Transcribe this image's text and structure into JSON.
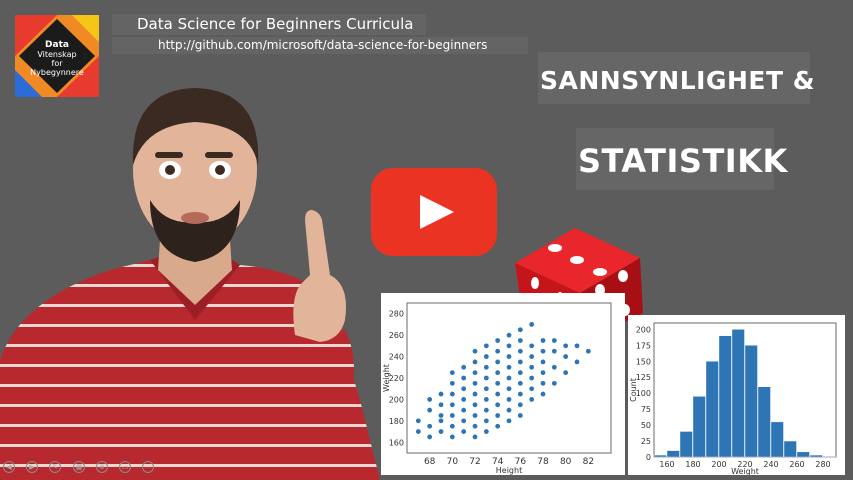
{
  "header": {
    "title": "Data Science for Beginners Curricula",
    "url": "http://github.com/microsoft/data-science-for-beginners"
  },
  "logo": {
    "line1": "Data",
    "line2": "Vitenskap",
    "line3": "for",
    "line4": "Nybegynnere"
  },
  "heading": {
    "line1": "SANNSYNLIGHET &",
    "line2": "STATISTIKK"
  },
  "colors": {
    "background": "#5c5c5c",
    "youtube_red": "#ea3323",
    "shirt_red": "#b8292f",
    "bar_blue": "#2e75b6",
    "dice_red": "#d7191c"
  },
  "icons": {
    "play": "youtube-play-icon",
    "dice": "dice-icon"
  },
  "chart_data": [
    {
      "type": "scatter",
      "ylabel": "Weight",
      "xlabel": "Height",
      "x_ticks": [
        "68",
        "70",
        "72",
        "74",
        "76",
        "78",
        "80",
        "82"
      ],
      "y_ticks": [
        "160",
        "180",
        "200",
        "220",
        "240",
        "260",
        "280"
      ],
      "ylim": [
        150,
        290
      ],
      "xlim": [
        66,
        84
      ],
      "grid": false,
      "points": [
        [
          67,
          170
        ],
        [
          67,
          180
        ],
        [
          68,
          175
        ],
        [
          68,
          190
        ],
        [
          68,
          200
        ],
        [
          68,
          165
        ],
        [
          69,
          180
        ],
        [
          69,
          195
        ],
        [
          69,
          205
        ],
        [
          69,
          170
        ],
        [
          69,
          185
        ],
        [
          70,
          175
        ],
        [
          70,
          185
        ],
        [
          70,
          195
        ],
        [
          70,
          205
        ],
        [
          70,
          215
        ],
        [
          70,
          225
        ],
        [
          70,
          165
        ],
        [
          71,
          180
        ],
        [
          71,
          190
        ],
        [
          71,
          200
        ],
        [
          71,
          210
        ],
        [
          71,
          220
        ],
        [
          71,
          230
        ],
        [
          71,
          170
        ],
        [
          72,
          175
        ],
        [
          72,
          185
        ],
        [
          72,
          195
        ],
        [
          72,
          205
        ],
        [
          72,
          215
        ],
        [
          72,
          225
        ],
        [
          72,
          235
        ],
        [
          72,
          245
        ],
        [
          72,
          165
        ],
        [
          73,
          180
        ],
        [
          73,
          190
        ],
        [
          73,
          200
        ],
        [
          73,
          210
        ],
        [
          73,
          220
        ],
        [
          73,
          230
        ],
        [
          73,
          240
        ],
        [
          73,
          250
        ],
        [
          73,
          170
        ],
        [
          74,
          185
        ],
        [
          74,
          195
        ],
        [
          74,
          205
        ],
        [
          74,
          215
        ],
        [
          74,
          225
        ],
        [
          74,
          235
        ],
        [
          74,
          245
        ],
        [
          74,
          255
        ],
        [
          74,
          175
        ],
        [
          75,
          190
        ],
        [
          75,
          200
        ],
        [
          75,
          210
        ],
        [
          75,
          220
        ],
        [
          75,
          230
        ],
        [
          75,
          240
        ],
        [
          75,
          250
        ],
        [
          75,
          260
        ],
        [
          75,
          180
        ],
        [
          76,
          195
        ],
        [
          76,
          205
        ],
        [
          76,
          215
        ],
        [
          76,
          225
        ],
        [
          76,
          235
        ],
        [
          76,
          245
        ],
        [
          76,
          255
        ],
        [
          76,
          265
        ],
        [
          76,
          185
        ],
        [
          77,
          200
        ],
        [
          77,
          210
        ],
        [
          77,
          220
        ],
        [
          77,
          230
        ],
        [
          77,
          240
        ],
        [
          77,
          250
        ],
        [
          77,
          270
        ],
        [
          78,
          205
        ],
        [
          78,
          215
        ],
        [
          78,
          225
        ],
        [
          78,
          235
        ],
        [
          78,
          245
        ],
        [
          78,
          255
        ],
        [
          79,
          215
        ],
        [
          79,
          230
        ],
        [
          79,
          245
        ],
        [
          79,
          255
        ],
        [
          80,
          225
        ],
        [
          80,
          240
        ],
        [
          80,
          250
        ],
        [
          81,
          235
        ],
        [
          81,
          250
        ],
        [
          82,
          245
        ]
      ]
    },
    {
      "type": "bar",
      "ylabel": "Count",
      "xlabel": "Weight",
      "x_ticks": [
        "160",
        "180",
        "200",
        "220",
        "240",
        "260",
        "280"
      ],
      "y_ticks": [
        "0",
        "25",
        "50",
        "75",
        "100",
        "125",
        "150",
        "175",
        "200"
      ],
      "ylim": [
        0,
        210
      ],
      "xlim": [
        150,
        290
      ],
      "bin_width": 10,
      "bins": [
        150,
        160,
        170,
        180,
        190,
        200,
        210,
        220,
        230,
        240,
        250,
        260,
        270,
        280
      ],
      "values": [
        3,
        10,
        40,
        95,
        150,
        190,
        200,
        175,
        110,
        55,
        25,
        8,
        3,
        1
      ]
    }
  ]
}
